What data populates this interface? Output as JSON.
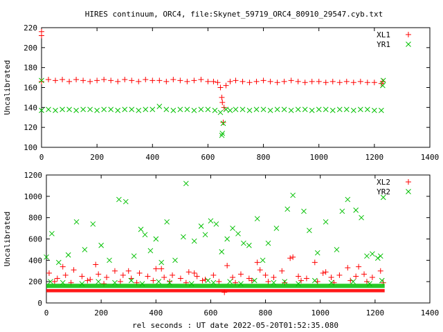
{
  "title": "HIRES continuum, ORC4, file:Skynet_59719_ORC4_80910_29547.cyb.txt",
  "xlabel": "rel seconds : UT date 2022-05-20T01:52:35.080",
  "colors": {
    "red": "#ff0000",
    "green": "#00c000"
  },
  "chart_data": [
    {
      "type": "scatter",
      "ylabel": "Uncalibrated",
      "xlim": [
        0,
        1400
      ],
      "ylim": [
        100,
        220
      ],
      "xticks": [
        0,
        200,
        400,
        600,
        800,
        1000,
        1200,
        1400
      ],
      "yticks": [
        100,
        120,
        140,
        160,
        180,
        200,
        220
      ],
      "legend_position": "top-right",
      "series": [
        {
          "name": "XL1",
          "marker": "plus",
          "color": "#ff0000",
          "x": [
            0,
            0,
            0,
            25,
            50,
            75,
            100,
            125,
            150,
            175,
            200,
            225,
            250,
            275,
            300,
            325,
            350,
            375,
            400,
            425,
            450,
            475,
            500,
            525,
            550,
            575,
            600,
            620,
            635,
            645,
            650,
            652,
            655,
            658,
            665,
            680,
            700,
            725,
            750,
            775,
            800,
            825,
            850,
            875,
            900,
            925,
            950,
            975,
            1000,
            1025,
            1050,
            1075,
            1100,
            1125,
            1150,
            1175,
            1200,
            1225,
            1230
          ],
          "y": [
            216,
            212,
            166,
            168,
            167,
            168,
            166,
            168,
            167,
            166,
            167,
            168,
            167,
            166,
            168,
            167,
            166,
            168,
            167,
            167,
            166,
            168,
            167,
            166,
            167,
            168,
            166,
            166,
            165,
            160,
            150,
            145,
            125,
            140,
            162,
            166,
            167,
            166,
            165,
            166,
            167,
            166,
            165,
            166,
            167,
            166,
            165,
            166,
            166,
            165,
            166,
            165,
            166,
            165,
            166,
            165,
            165,
            164,
            166
          ]
        },
        {
          "name": "YR1",
          "marker": "cross",
          "color": "#00c000",
          "x": [
            0,
            0,
            25,
            50,
            75,
            100,
            125,
            150,
            175,
            200,
            225,
            250,
            275,
            300,
            325,
            350,
            375,
            400,
            425,
            450,
            475,
            500,
            525,
            550,
            575,
            600,
            625,
            645,
            650,
            652,
            655,
            665,
            680,
            700,
            725,
            750,
            775,
            800,
            825,
            850,
            875,
            900,
            925,
            950,
            975,
            1000,
            1025,
            1050,
            1075,
            1100,
            1125,
            1150,
            1175,
            1200,
            1225,
            1230,
            1232
          ],
          "y": [
            167,
            137,
            138,
            137,
            138,
            138,
            137,
            138,
            138,
            137,
            138,
            138,
            137,
            138,
            138,
            137,
            138,
            138,
            141,
            138,
            137,
            138,
            138,
            137,
            138,
            138,
            137,
            135,
            112,
            114,
            124,
            138,
            137,
            138,
            138,
            137,
            138,
            138,
            137,
            138,
            138,
            137,
            138,
            138,
            137,
            138,
            138,
            137,
            138,
            138,
            137,
            138,
            138,
            137,
            137,
            162,
            167
          ]
        }
      ]
    },
    {
      "type": "scatter",
      "ylabel": "Uncalibrated",
      "xlim": [
        0,
        1400
      ],
      "ylim": [
        0,
        1200
      ],
      "xticks": [
        0,
        200,
        400,
        600,
        800,
        1000,
        1200,
        1400
      ],
      "yticks": [
        0,
        200,
        400,
        600,
        800,
        1000,
        1200
      ],
      "legend_position": "top-right",
      "series": [
        {
          "name": "XL2",
          "marker": "plus",
          "color": "#ff0000",
          "x": [
            10,
            40,
            70,
            100,
            130,
            160,
            190,
            220,
            250,
            280,
            310,
            340,
            370,
            400,
            430,
            460,
            490,
            520,
            550,
            580,
            610,
            650,
            680,
            710,
            740,
            770,
            800,
            830,
            860,
            890,
            920,
            950,
            980,
            1010,
            1040,
            1070,
            1100,
            1130,
            1160,
            1190,
            1220,
            30,
            90,
            150,
            210,
            270,
            330,
            390,
            450,
            510,
            570,
            630,
            690,
            750,
            810,
            870,
            930,
            990,
            1050,
            1110,
            1170,
            1230,
            60,
            180,
            300,
            420,
            540,
            660,
            780,
            900,
            1020,
            1140
          ],
          "y": [
            280,
            230,
            260,
            310,
            250,
            220,
            270,
            240,
            300,
            260,
            230,
            280,
            250,
            320,
            240,
            260,
            230,
            290,
            250,
            220,
            260,
            100,
            240,
            270,
            230,
            380,
            260,
            240,
            300,
            420,
            250,
            230,
            380,
            280,
            240,
            260,
            330,
            250,
            270,
            240,
            300,
            200,
            190,
            210,
            180,
            200,
            190,
            210,
            200,
            190,
            210,
            200,
            190,
            210,
            200,
            190,
            210,
            200,
            190,
            210,
            200,
            190,
            340,
            360,
            300,
            320,
            280,
            350,
            310,
            430,
            290,
            340
          ]
        },
        {
          "name": "YR2",
          "marker": "cross",
          "color": "#00c000",
          "x": [
            0,
            20,
            45,
            80,
            110,
            140,
            170,
            200,
            230,
            265,
            290,
            320,
            345,
            360,
            380,
            400,
            420,
            440,
            470,
            500,
            510,
            540,
            565,
            580,
            600,
            620,
            640,
            660,
            680,
            700,
            720,
            740,
            770,
            790,
            810,
            840,
            880,
            900,
            940,
            960,
            990,
            1020,
            1060,
            1080,
            1100,
            1130,
            1150,
            1170,
            1190,
            1210,
            1220,
            1230,
            15,
            60,
            130,
            190,
            250,
            310,
            350,
            410,
            450,
            530,
            590,
            610,
            670,
            710,
            760,
            830,
            870,
            920,
            980,
            1040,
            1120,
            1180,
            1225
          ],
          "y": [
            430,
            650,
            380,
            450,
            760,
            500,
            740,
            540,
            400,
            970,
            950,
            440,
            690,
            640,
            490,
            600,
            380,
            760,
            400,
            620,
            1120,
            580,
            720,
            640,
            770,
            740,
            480,
            600,
            700,
            650,
            560,
            540,
            790,
            400,
            560,
            700,
            880,
            1010,
            860,
            680,
            470,
            760,
            500,
            860,
            970,
            870,
            800,
            440,
            460,
            420,
            440,
            990,
            200,
            190,
            180,
            200,
            190,
            210,
            180,
            200,
            190,
            180,
            210,
            190,
            200,
            180,
            210,
            190,
            200,
            180,
            210,
            190,
            200,
            180,
            210
          ]
        }
      ]
    }
  ]
}
